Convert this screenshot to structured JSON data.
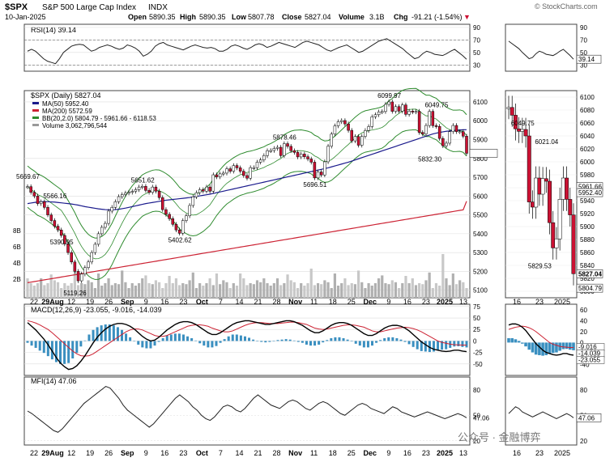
{
  "header": {
    "symbol": "$SPX",
    "name": "S&P 500 Large Cap Index",
    "exchange": "INDX",
    "date": "10-Jan-2025",
    "open_label": "Open",
    "open": "5890.35",
    "high_label": "High",
    "high": "5890.35",
    "low_label": "Low",
    "low": "5807.78",
    "close_label": "Close",
    "close": "5827.04",
    "volume_label": "Volume",
    "volume": "3.1B",
    "chg_label": "Chg",
    "chg": "-91.21 (-1.54%)",
    "credit": "© StockCharts.com"
  },
  "watermark": "公众号 · 金融博弈",
  "colors": {
    "up": "#ffffff",
    "down": "#cc1133",
    "ma50": "#1a1a8c",
    "ma200": "#cc2233",
    "bb": "#2e8b2e",
    "volume": "#c8c8c8",
    "volume_up": "#b0b0b0",
    "macd_line": "#000000",
    "signal": "#cc2233",
    "histogram": "#3a8fc0"
  },
  "chart_data": [
    {
      "type": "line",
      "panel": "RSI",
      "title": "RSI(14) 39.14",
      "ylim": [
        20,
        95
      ],
      "y_ticks": [
        90,
        70,
        50,
        30
      ],
      "reference_lines": [
        70,
        30
      ],
      "values": [
        52,
        55,
        52,
        46,
        40,
        36,
        34,
        32,
        40,
        50,
        55,
        60,
        62,
        63,
        62,
        57,
        52,
        54,
        58,
        60,
        62,
        60,
        57,
        55,
        57,
        62,
        60,
        57,
        52,
        44,
        47,
        52,
        60,
        64,
        66,
        62,
        60,
        58,
        56,
        54,
        57,
        60,
        62,
        60,
        58,
        57,
        58,
        56,
        52,
        52,
        55,
        60,
        62,
        60,
        57,
        55,
        58,
        62,
        64,
        62,
        58,
        60,
        63,
        66,
        64,
        62,
        60,
        58,
        62,
        66,
        68,
        66,
        64,
        62,
        58,
        54,
        52,
        55,
        58,
        60,
        62,
        58,
        54,
        50,
        52,
        56,
        60,
        64,
        68,
        70,
        72,
        68,
        64,
        60,
        56,
        50,
        45,
        40,
        42,
        48,
        52,
        50,
        47,
        46,
        45,
        48,
        52,
        55,
        50,
        45,
        39.14
      ],
      "last_label": "39.14"
    },
    {
      "type": "candlestick",
      "panel": "Price",
      "title": "$SPX (Daily) 5827.04",
      "legend": [
        {
          "label": "MA(50) 5952.40",
          "color": "#1a1a8c"
        },
        {
          "label": "MA(200) 5572.59",
          "color": "#cc2233"
        },
        {
          "label": "BB(20,2.0) 5804.79 - 5961.66 - 6118.53",
          "color": "#2e8b2e"
        },
        {
          "label": "Volume 3,062,796,544",
          "color": "#999999"
        }
      ],
      "ylim": [
        5060,
        6160
      ],
      "y_ticks": [
        6100,
        6000,
        5900,
        5800,
        5700,
        5600,
        5500,
        5400,
        5300,
        5200,
        5100
      ],
      "volume_ticks": [
        "8B",
        "6B",
        "4B",
        "2B"
      ],
      "closes": [
        5650,
        5620,
        5600,
        5560,
        5570,
        5540,
        5500,
        5470,
        5440,
        5420,
        5390.95,
        5346,
        5300,
        5250,
        5200,
        5150,
        5186,
        5220,
        5250,
        5300,
        5344,
        5400,
        5434,
        5455,
        5520,
        5540,
        5570,
        5597,
        5608,
        5616,
        5620,
        5625,
        5634,
        5648,
        5651.62,
        5630,
        5620,
        5648,
        5626,
        5592,
        5528,
        5503,
        5480,
        5450,
        5420,
        5402.62,
        5470,
        5495,
        5550,
        5596,
        5618,
        5634,
        5626,
        5648,
        5626,
        5713,
        5702,
        5718,
        5722,
        5745,
        5732,
        5762,
        5750,
        5732,
        5709,
        5695,
        5751,
        5751,
        5780,
        5792,
        5815,
        5841,
        5842,
        5853,
        5859,
        5815,
        5878.46,
        5864,
        5841,
        5832,
        5808,
        5823,
        5809,
        5797,
        5780,
        5696.51,
        5728,
        5712,
        5782,
        5865,
        5929,
        5973,
        5995,
        6001,
        5983,
        5949,
        5893,
        5916,
        5870,
        5917,
        5948,
        5969,
        6021,
        6032,
        6047,
        6049,
        6087,
        6099.97,
        6050,
        6075,
        6051,
        6084,
        6034,
        6051,
        6047,
        6050,
        5938,
        5930,
        5975,
        6049.75,
        5974,
        5970,
        5906,
        5867,
        5881,
        5942,
        5975,
        5942,
        5942,
        5918,
        5827.04
      ],
      "ma50": [
        5560,
        5563,
        5566,
        5568,
        5570,
        5571,
        5570,
        5569,
        5568,
        5566,
        5564,
        5562,
        5560,
        5558,
        5555,
        5552,
        5548,
        5544,
        5541,
        5538,
        5535,
        5532,
        5530,
        5528,
        5527,
        5527,
        5528,
        5530,
        5533,
        5536,
        5540,
        5544,
        5548,
        5552,
        5556,
        5560,
        5563,
        5566,
        5569,
        5572,
        5575,
        5578,
        5580,
        5582,
        5584,
        5586,
        5588,
        5590,
        5592,
        5595,
        5598,
        5601,
        5604,
        5607,
        5610,
        5614,
        5618,
        5622,
        5626,
        5630,
        5634,
        5638,
        5642,
        5646,
        5650,
        5654,
        5658,
        5662,
        5666,
        5670,
        5674,
        5678,
        5682,
        5686,
        5690,
        5694,
        5698,
        5702,
        5706,
        5710,
        5714,
        5718,
        5722,
        5726,
        5730,
        5734,
        5738,
        5742,
        5746,
        5750,
        5755,
        5760,
        5765,
        5770,
        5775,
        5780,
        5786,
        5792,
        5798,
        5804,
        5810,
        5816,
        5822,
        5828,
        5834,
        5840,
        5846,
        5852,
        5858,
        5864,
        5870,
        5876,
        5882,
        5888,
        5894,
        5900,
        5906,
        5912,
        5918,
        5924,
        5930,
        5934,
        5938,
        5941,
        5944,
        5946,
        5948,
        5950,
        5951,
        5952,
        5952.4
      ],
      "ma200": [
        5140,
        5143,
        5146,
        5149,
        5152,
        5155,
        5158,
        5161,
        5164,
        5167,
        5170,
        5173,
        5176,
        5179,
        5182,
        5185,
        5188,
        5191,
        5194,
        5197,
        5200,
        5203,
        5206,
        5209,
        5212,
        5215,
        5218,
        5221,
        5224,
        5227,
        5230,
        5233,
        5236,
        5239,
        5242,
        5245,
        5248,
        5251,
        5254,
        5257,
        5260,
        5263,
        5266,
        5269,
        5272,
        5275,
        5278,
        5281,
        5284,
        5287,
        5290,
        5293,
        5296,
        5299,
        5302,
        5305,
        5308,
        5311,
        5314,
        5317,
        5320,
        5323,
        5326,
        5329,
        5332,
        5335,
        5338,
        5341,
        5344,
        5347,
        5350,
        5353,
        5356,
        5359,
        5362,
        5365,
        5368,
        5371,
        5374,
        5377,
        5380,
        5383,
        5386,
        5389,
        5392,
        5395,
        5398,
        5401,
        5404,
        5407,
        5410,
        5413,
        5416,
        5419,
        5422,
        5425,
        5428,
        5431,
        5434,
        5437,
        5440,
        5443,
        5446,
        5449,
        5452,
        5455,
        5458,
        5461,
        5464,
        5467,
        5470,
        5473,
        5476,
        5479,
        5482,
        5485,
        5488,
        5491,
        5494,
        5497,
        5500,
        5503,
        5506,
        5509,
        5512,
        5515,
        5518,
        5521,
        5524,
        5527,
        5572.59
      ],
      "annotations": [
        {
          "label": "5669.67",
          "i": 0,
          "v": 5669.67,
          "pos": "above"
        },
        {
          "label": "5566.16",
          "i": 8,
          "v": 5566.16,
          "pos": "above"
        },
        {
          "label": "5390.95",
          "i": 10,
          "v": 5390.95,
          "pos": "below"
        },
        {
          "label": "5119.26",
          "i": 14,
          "v": 5119.26,
          "pos": "below"
        },
        {
          "label": "5651.62",
          "i": 34,
          "v": 5651.62,
          "pos": "above"
        },
        {
          "label": "5402.62",
          "i": 45,
          "v": 5402.62,
          "pos": "below"
        },
        {
          "label": "5878.46",
          "i": 76,
          "v": 5878.46,
          "pos": "above"
        },
        {
          "label": "5696.51",
          "i": 85,
          "v": 5696.51,
          "pos": "below"
        },
        {
          "label": "6099.97",
          "i": 107,
          "v": 6099.97,
          "pos": "above"
        },
        {
          "label": "6049.75",
          "i": 121,
          "v": 6049.75,
          "pos": "above"
        },
        {
          "label": "5832.30",
          "i": 119,
          "v": 5832.3,
          "pos": "below"
        }
      ],
      "x_labels": [
        "22",
        "29Aug",
        "12",
        "19",
        "26",
        "Sep",
        "9",
        "16",
        "23",
        "Oct",
        "7",
        "14",
        "21",
        "28",
        "Nov",
        "11",
        "18",
        "25",
        "Dec",
        "9",
        "16",
        "23",
        "2025",
        "13"
      ],
      "last_price_label": "5827.04"
    },
    {
      "type": "line",
      "panel": "MACD",
      "title": "MACD(12,26,9) -23.055, -9.016, -14.039",
      "ylim": [
        -75,
        80
      ],
      "y_ticks": [
        75,
        50,
        25,
        0,
        -25,
        -50
      ],
      "macd": [
        40,
        32,
        24,
        14,
        4,
        -8,
        -22,
        -36,
        -48,
        -56,
        -62,
        -60,
        -54,
        -44,
        -32,
        -18,
        -4,
        8,
        18,
        26,
        32,
        36,
        38,
        38,
        36,
        32,
        26,
        18,
        10,
        4,
        0,
        2,
        8,
        16,
        24,
        30,
        36,
        40,
        42,
        42,
        40,
        36,
        30,
        24,
        18,
        14,
        14,
        18,
        24,
        30,
        36,
        40,
        42,
        44,
        44,
        42,
        40,
        38,
        36,
        36,
        38,
        40,
        42,
        44,
        44,
        42,
        38,
        34,
        28,
        22,
        18,
        18,
        22,
        28,
        34,
        38,
        40,
        40,
        38,
        34,
        28,
        22,
        16,
        12,
        12,
        16,
        22,
        28,
        32,
        34,
        34,
        32,
        28,
        22,
        14,
        6,
        -2,
        -8,
        -14,
        -18,
        -20,
        -22,
        -23,
        -22,
        -20,
        -20,
        -22,
        -23.055
      ],
      "signal": [
        44,
        42,
        39,
        35,
        30,
        25,
        18,
        10,
        2,
        -6,
        -14,
        -22,
        -28,
        -32,
        -33,
        -32,
        -28,
        -22,
        -16,
        -10,
        -4,
        2,
        8,
        14,
        20,
        24,
        26,
        26,
        24,
        20,
        16,
        12,
        10,
        10,
        12,
        16,
        20,
        24,
        28,
        32,
        34,
        35,
        35,
        34,
        32,
        28,
        25,
        22,
        20,
        20,
        22,
        26,
        30,
        34,
        37,
        39,
        40,
        40,
        39,
        38,
        38,
        38,
        39,
        40,
        41,
        41,
        40,
        38,
        36,
        32,
        28,
        26,
        25,
        26,
        28,
        30,
        32,
        34,
        35,
        35,
        34,
        32,
        30,
        26,
        22,
        20,
        20,
        22,
        24,
        26,
        28,
        29,
        30,
        29,
        27,
        24,
        20,
        15,
        10,
        5,
        0,
        -3,
        -5,
        -7,
        -8,
        -8.5,
        -9,
        -9.016
      ],
      "histogram": [
        -4,
        -10,
        -15,
        -21,
        -26,
        -33,
        -40,
        -46,
        -50,
        -50,
        -48,
        -38,
        -26,
        -12,
        1,
        14,
        24,
        30,
        34,
        36,
        36,
        34,
        30,
        24,
        16,
        8,
        0,
        -8,
        -14,
        -16,
        -16,
        -10,
        -2,
        6,
        12,
        14,
        16,
        16,
        14,
        10,
        6,
        1,
        -5,
        -10,
        -14,
        -14,
        -11,
        -4,
        4,
        10,
        14,
        14,
        12,
        10,
        7,
        3,
        0,
        -2,
        -3,
        -2,
        0,
        2,
        3,
        4,
        3,
        1,
        -2,
        -4,
        -8,
        -10,
        -10,
        -8,
        -3,
        2,
        6,
        8,
        8,
        6,
        3,
        -1,
        -6,
        -10,
        -14,
        -14,
        -10,
        -4,
        2,
        6,
        8,
        8,
        6,
        3,
        -2,
        -7,
        -13,
        -18,
        -22,
        -23,
        -24,
        -23,
        -20,
        -19,
        -18,
        -15,
        -12,
        -11.5,
        -13,
        -14.039
      ]
    },
    {
      "type": "line",
      "panel": "MFI",
      "title": "MFI(14) 47.06",
      "ylim": [
        15,
        95
      ],
      "y_ticks": [
        80,
        50,
        20
      ],
      "values": [
        55,
        52,
        48,
        44,
        40,
        36,
        32,
        30,
        34,
        40,
        46,
        52,
        58,
        64,
        68,
        72,
        76,
        80,
        84,
        82,
        76,
        70,
        62,
        56,
        52,
        48,
        44,
        40,
        36,
        40,
        46,
        52,
        58,
        64,
        70,
        74,
        70,
        66,
        60,
        56,
        50,
        46,
        44,
        48,
        54,
        60,
        62,
        60,
        56,
        54,
        58,
        64,
        70,
        74,
        70,
        66,
        62,
        60,
        58,
        62,
        66,
        68,
        66,
        62,
        58,
        56,
        60,
        64,
        66,
        64,
        60,
        56,
        52,
        50,
        54,
        58,
        62,
        64,
        62,
        58,
        56,
        54,
        52,
        56,
        60,
        58,
        54,
        52,
        50,
        48,
        50,
        52,
        54,
        52,
        50,
        48,
        46,
        48,
        50,
        52,
        50,
        47.06
      ],
      "last_label": "47.06"
    },
    {
      "type": "candlestick",
      "panel": "Zoom",
      "x_labels": [
        "16",
        "23",
        "2025"
      ],
      "ylim": [
        5790,
        6110
      ],
      "y_ticks": [
        6100,
        6080,
        6060,
        6040,
        6020,
        6000,
        5980,
        5960,
        5940,
        5920,
        5900,
        5880,
        5860,
        5840,
        5820,
        5800
      ],
      "price_labels": [
        "5961.66",
        "5952.40",
        "5827.04",
        "5804.79"
      ],
      "annotations": [
        {
          "label": "6049.75",
          "i": 4,
          "v": 6049.75
        },
        {
          "label": "6021.04",
          "i": 11,
          "v": 6021.04
        },
        {
          "label": "5829.53",
          "i": 9,
          "v": 5829.53
        }
      ],
      "closes": [
        6084,
        6072,
        6051,
        6047,
        6050,
        6040,
        5938,
        5930,
        5975,
        5950,
        5974,
        5970,
        5906,
        5867,
        5881,
        5942,
        5975,
        5942,
        5918,
        5827.04
      ],
      "rsi_ticks": [
        90,
        70,
        50,
        30
      ],
      "rsi_last": "39.14",
      "macd_ticks": [
        60,
        40,
        20,
        0,
        -20,
        -40
      ],
      "macd_labels": [
        "-9.016",
        "-14.039",
        "-23.055"
      ],
      "mfi_ticks": [
        80,
        50,
        20
      ],
      "mfi_last": "47.06"
    }
  ]
}
